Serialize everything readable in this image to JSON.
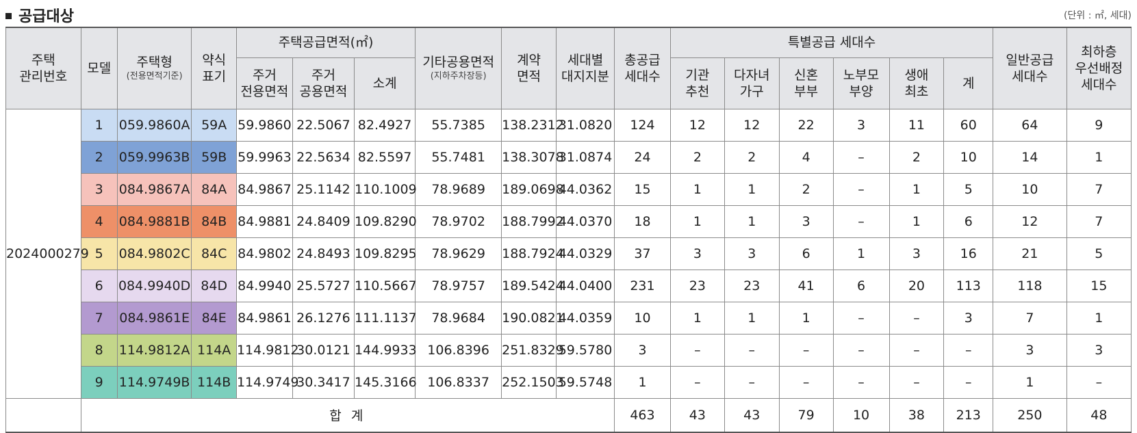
{
  "title": "공급대상",
  "unit": "(단위 : ㎡, 세대)",
  "headers": {
    "mgmt_no": [
      "주택",
      "관리번호"
    ],
    "model": "모델",
    "type": "주택형",
    "type_sub": "(전용면적기준)",
    "short": [
      "약식",
      "표기"
    ],
    "supply_area": "주택공급면적(㎡)",
    "res_exclusive": [
      "주거",
      "전용면적"
    ],
    "res_common": [
      "주거",
      "공용면적"
    ],
    "subtotal": "소계",
    "other_common": "기타공용면적",
    "other_common_sub": "(지하주차장등)",
    "contract_area": [
      "계약",
      "면적"
    ],
    "land_share": [
      "세대별",
      "대지지분"
    ],
    "total_supply": [
      "총공급",
      "세대수"
    ],
    "special_supply": "특별공급 세대수",
    "institution": [
      "기관",
      "추천"
    ],
    "multi_child": [
      "다자녀",
      "가구"
    ],
    "newlywed": [
      "신혼",
      "부부"
    ],
    "elderly_parent": [
      "노부모",
      "부양"
    ],
    "first_life": [
      "생애",
      "최초"
    ],
    "special_sum": "계",
    "general_supply": [
      "일반공급",
      "세대수"
    ],
    "lowest_floor": [
      "최하층",
      "우선배정",
      "세대수"
    ]
  },
  "mgmt_no": "2024000279",
  "rows": [
    {
      "model": "1",
      "type": "059.9860A",
      "short": "59A",
      "excl": "59.9860",
      "comm": "22.5067",
      "sub": "82.4927",
      "other": "55.7385",
      "contract": "138.2312",
      "land": "31.0820",
      "total": "124",
      "inst": "12",
      "multi": "12",
      "newly": "22",
      "elder": "3",
      "first": "11",
      "ssum": "60",
      "general": "64",
      "lowest": "9",
      "color": "#c9dcf3"
    },
    {
      "model": "2",
      "type": "059.9963B",
      "short": "59B",
      "excl": "59.9963",
      "comm": "22.5634",
      "sub": "82.5597",
      "other": "55.7481",
      "contract": "138.3078",
      "land": "31.0874",
      "total": "24",
      "inst": "2",
      "multi": "2",
      "newly": "4",
      "elder": "–",
      "first": "2",
      "ssum": "10",
      "general": "14",
      "lowest": "1",
      "color": "#7fa2d6"
    },
    {
      "model": "3",
      "type": "084.9867A",
      "short": "84A",
      "excl": "84.9867",
      "comm": "25.1142",
      "sub": "110.1009",
      "other": "78.9689",
      "contract": "189.0698",
      "land": "44.0362",
      "total": "15",
      "inst": "1",
      "multi": "1",
      "newly": "2",
      "elder": "–",
      "first": "1",
      "ssum": "5",
      "general": "10",
      "lowest": "7",
      "color": "#f6c2bb"
    },
    {
      "model": "4",
      "type": "084.9881B",
      "short": "84B",
      "excl": "84.9881",
      "comm": "24.8409",
      "sub": "109.8290",
      "other": "78.9702",
      "contract": "188.7992",
      "land": "44.0370",
      "total": "18",
      "inst": "1",
      "multi": "1",
      "newly": "3",
      "elder": "–",
      "first": "1",
      "ssum": "6",
      "general": "12",
      "lowest": "7",
      "color": "#ee9068"
    },
    {
      "model": "5",
      "type": "084.9802C",
      "short": "84C",
      "excl": "84.9802",
      "comm": "24.8493",
      "sub": "109.8295",
      "other": "78.9629",
      "contract": "188.7924",
      "land": "44.0329",
      "total": "37",
      "inst": "3",
      "multi": "3",
      "newly": "6",
      "elder": "1",
      "first": "3",
      "ssum": "16",
      "general": "21",
      "lowest": "5",
      "color": "#f7e5a8"
    },
    {
      "model": "6",
      "type": "084.9940D",
      "short": "84D",
      "excl": "84.9940",
      "comm": "25.5727",
      "sub": "110.5667",
      "other": "78.9757",
      "contract": "189.5424",
      "land": "44.0400",
      "total": "231",
      "inst": "23",
      "multi": "23",
      "newly": "41",
      "elder": "6",
      "first": "20",
      "ssum": "113",
      "general": "118",
      "lowest": "15",
      "color": "#e6d9ef"
    },
    {
      "model": "7",
      "type": "084.9861E",
      "short": "84E",
      "excl": "84.9861",
      "comm": "26.1276",
      "sub": "111.1137",
      "other": "78.9684",
      "contract": "190.0821",
      "land": "44.0359",
      "total": "10",
      "inst": "1",
      "multi": "1",
      "newly": "1",
      "elder": "–",
      "first": "–",
      "ssum": "3",
      "general": "7",
      "lowest": "1",
      "color": "#b39ad0"
    },
    {
      "model": "8",
      "type": "114.9812A",
      "short": "114A",
      "excl": "114.9812",
      "comm": "30.0121",
      "sub": "144.9933",
      "other": "106.8396",
      "contract": "251.8329",
      "land": "59.5780",
      "total": "3",
      "inst": "–",
      "multi": "–",
      "newly": "–",
      "elder": "–",
      "first": "–",
      "ssum": "–",
      "general": "3",
      "lowest": "3",
      "color": "#c3d68a"
    },
    {
      "model": "9",
      "type": "114.9749B",
      "short": "114B",
      "excl": "114.9749",
      "comm": "30.3417",
      "sub": "145.3166",
      "other": "106.8337",
      "contract": "252.1503",
      "land": "59.5748",
      "total": "1",
      "inst": "–",
      "multi": "–",
      "newly": "–",
      "elder": "–",
      "first": "–",
      "ssum": "–",
      "general": "1",
      "lowest": "–",
      "color": "#7ccfbd"
    }
  ],
  "totals": {
    "label": "합 계",
    "total": "463",
    "inst": "43",
    "multi": "43",
    "newly": "79",
    "elder": "10",
    "first": "38",
    "ssum": "213",
    "general": "250",
    "lowest": "48"
  }
}
